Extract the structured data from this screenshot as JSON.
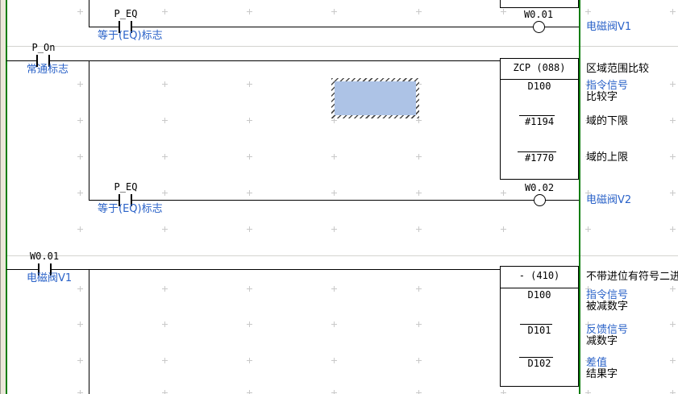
{
  "colors": {
    "rail_green": "#0a7d0a",
    "comment_blue": "#2a62c8",
    "selection_fill": "#adc3e6",
    "margin_beige": "#ebe8da",
    "separator_gray": "#d4d4d0",
    "wire_black": "#000000",
    "grid_gray": "#c9c9c9"
  },
  "rung1": {
    "contact_label": "P_EQ",
    "contact_comment": "等于(EQ)标志",
    "coil_label": "W0.01",
    "coil_comment": "电磁阀V1"
  },
  "rung2": {
    "power_contact_label": "P_On",
    "power_contact_comment": "常通标志",
    "block_header": "ZCP (088)",
    "block_header_comment": "区域范围比较",
    "operands": [
      {
        "value": "D100",
        "comment1": "指令信号",
        "comment2": "比较字"
      },
      {
        "value": "#1194",
        "comment2": "域的下限"
      },
      {
        "value": "#1770",
        "comment2": "域的上限"
      }
    ],
    "branch_contact_label": "P_EQ",
    "branch_contact_comment": "等于(EQ)标志",
    "coil_label": "W0.02",
    "coil_comment": "电磁阀V2"
  },
  "rung3": {
    "contact_label": "W0.01",
    "contact_comment": "电磁阀V1",
    "block_header": "- (410)",
    "block_header_comment": "不带进位有符号二进制",
    "operands": [
      {
        "value": "D100",
        "comment1": "指令信号",
        "comment2": "被减数字"
      },
      {
        "value": "D101",
        "comment1": "反馈信号",
        "comment2": "减数字"
      },
      {
        "value": "D102",
        "comment1": "差值",
        "comment2": "结果字"
      }
    ]
  }
}
